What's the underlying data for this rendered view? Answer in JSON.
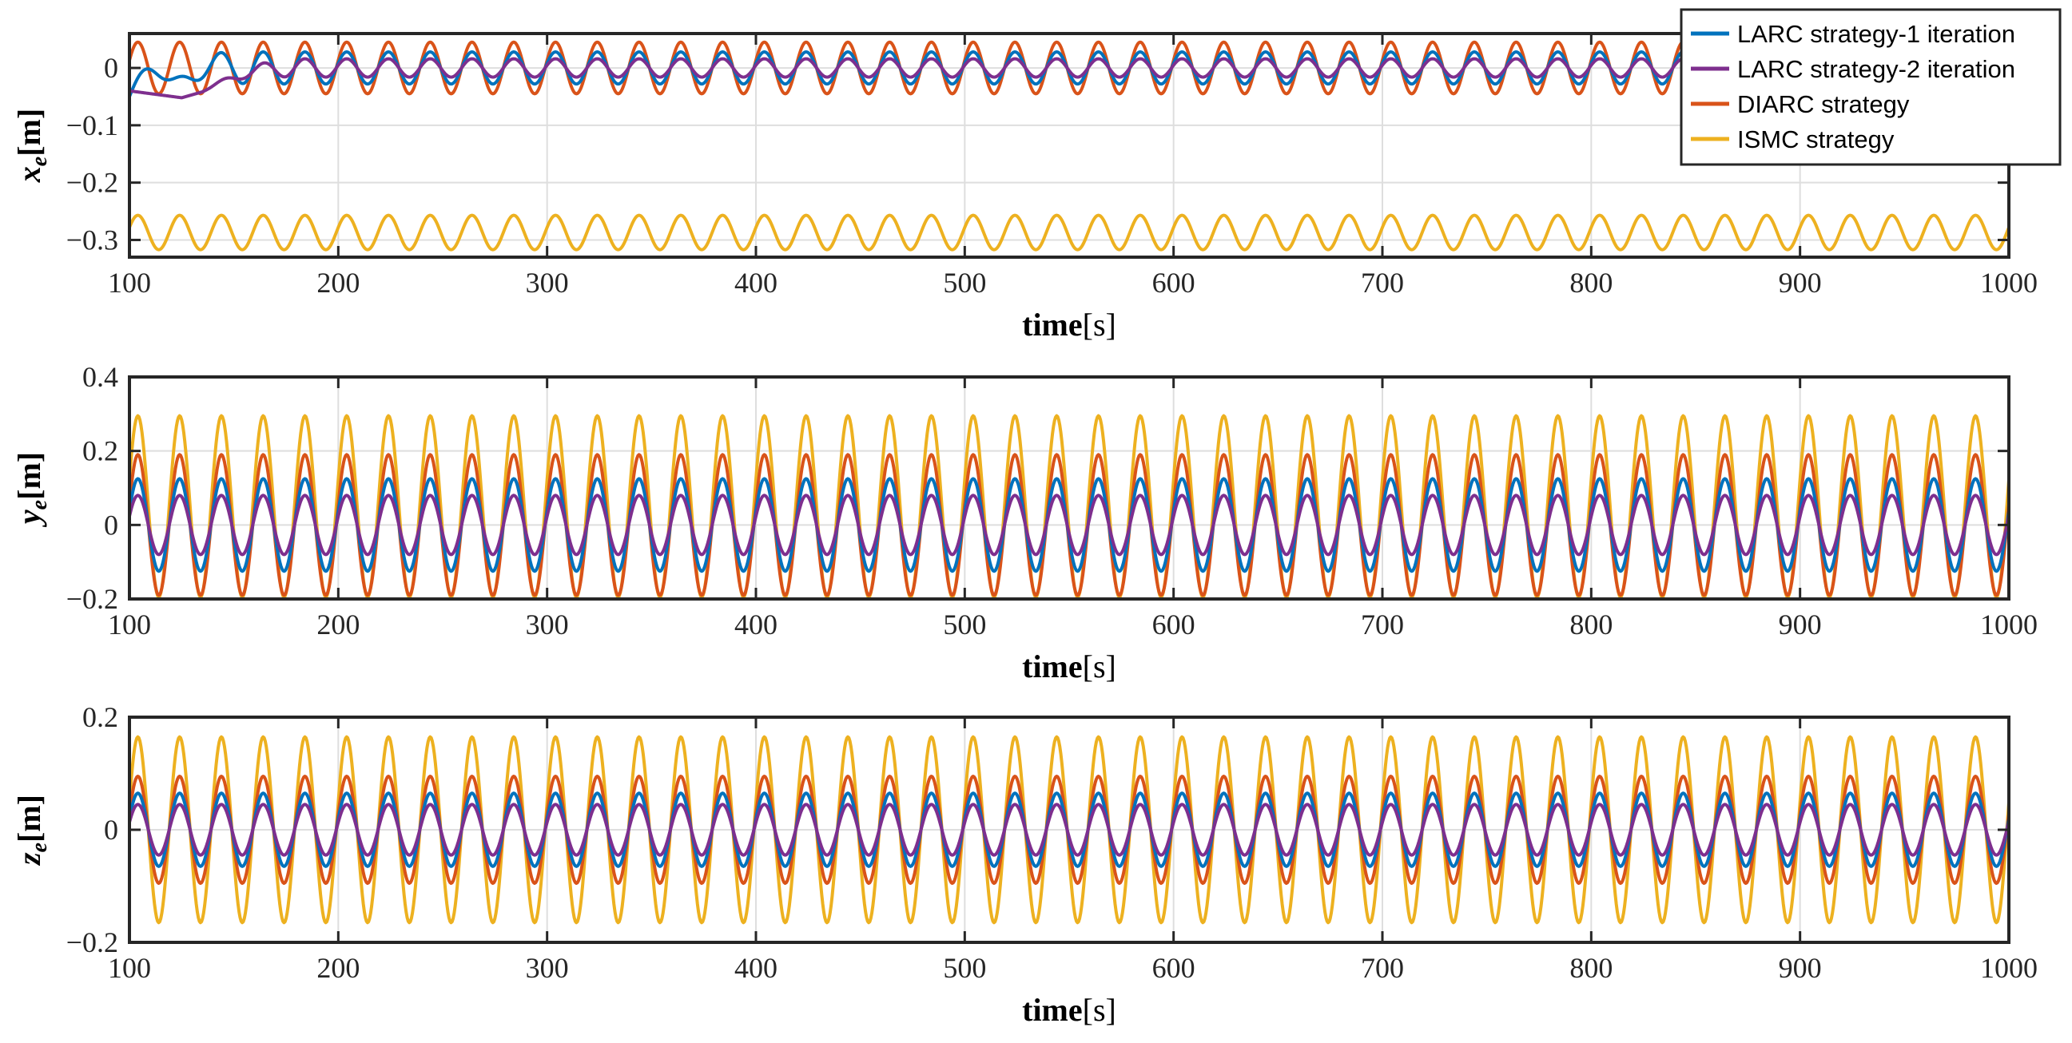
{
  "chart_data": [
    {
      "type": "line",
      "ylabel_var": "x",
      "ylabel_sub": "e",
      "ylabel_unit": "[m]",
      "xlabel_main": "time",
      "xlabel_unit": "[s]",
      "xlim": [
        100,
        1000
      ],
      "ylim": [
        -0.33,
        0.06
      ],
      "xticks": [
        100,
        200,
        300,
        400,
        500,
        600,
        700,
        800,
        900,
        1000
      ],
      "yticks": [
        0,
        -0.1,
        -0.2,
        -0.3
      ],
      "ytick_labels": [
        "0",
        "−0.1",
        "−0.2",
        "−0.3"
      ],
      "period": 20,
      "grid": true,
      "legend": {
        "location": "top-right"
      },
      "series": [
        {
          "name": "LARC strategy-1 iteration",
          "color": "#0072BD",
          "center": 0.0,
          "amplitude": 0.028,
          "transient": "osc"
        },
        {
          "name": "LARC strategy-2 iteration",
          "color": "#7E2F8E",
          "center": 0.0,
          "amplitude": 0.016,
          "transient": "dip"
        },
        {
          "name": "DIARC strategy",
          "color": "#D95319",
          "center": 0.0,
          "amplitude": 0.045,
          "transient": "none"
        },
        {
          "name": "ISMC strategy",
          "color": "#EDB120",
          "center": -0.287,
          "amplitude": 0.03,
          "transient": "none"
        }
      ]
    },
    {
      "type": "line",
      "ylabel_var": "y",
      "ylabel_sub": "e",
      "ylabel_unit": "[m]",
      "xlabel_main": "time",
      "xlabel_unit": "[s]",
      "xlim": [
        100,
        1000
      ],
      "ylim": [
        -0.2,
        0.4
      ],
      "xticks": [
        100,
        200,
        300,
        400,
        500,
        600,
        700,
        800,
        900,
        1000
      ],
      "yticks": [
        0.4,
        0.2,
        0,
        -0.2
      ],
      "ytick_labels": [
        "0.4",
        "0.2",
        "0",
        "−0.2"
      ],
      "period": 20,
      "grid": true,
      "series": [
        {
          "name": "LARC strategy-1 iteration",
          "color": "#0072BD",
          "center": 0.0,
          "amplitude": 0.125
        },
        {
          "name": "LARC strategy-2 iteration",
          "color": "#7E2F8E",
          "center": 0.0,
          "amplitude": 0.08
        },
        {
          "name": "DIARC strategy",
          "color": "#D95319",
          "center": 0.0,
          "amplitude": 0.19
        },
        {
          "name": "ISMC strategy",
          "color": "#EDB120",
          "center": 0.05,
          "amplitude": 0.245
        }
      ]
    },
    {
      "type": "line",
      "ylabel_var": "z",
      "ylabel_sub": "e",
      "ylabel_unit": "[m]",
      "xlabel_main": "time",
      "xlabel_unit": "[s]",
      "xlim": [
        100,
        1000
      ],
      "ylim": [
        -0.2,
        0.2
      ],
      "xticks": [
        100,
        200,
        300,
        400,
        500,
        600,
        700,
        800,
        900,
        1000
      ],
      "yticks": [
        0.2,
        0,
        -0.2
      ],
      "ytick_labels": [
        "0.2",
        "0",
        "−0.2"
      ],
      "period": 20,
      "grid": true,
      "series": [
        {
          "name": "LARC strategy-1 iteration",
          "color": "#0072BD",
          "center": 0.0,
          "amplitude": 0.065
        },
        {
          "name": "LARC strategy-2 iteration",
          "color": "#7E2F8E",
          "center": 0.0,
          "amplitude": 0.045
        },
        {
          "name": "DIARC strategy",
          "color": "#D95319",
          "center": 0.0,
          "amplitude": 0.095
        },
        {
          "name": "ISMC strategy",
          "color": "#EDB120",
          "center": 0.0,
          "amplitude": 0.165
        }
      ]
    }
  ]
}
